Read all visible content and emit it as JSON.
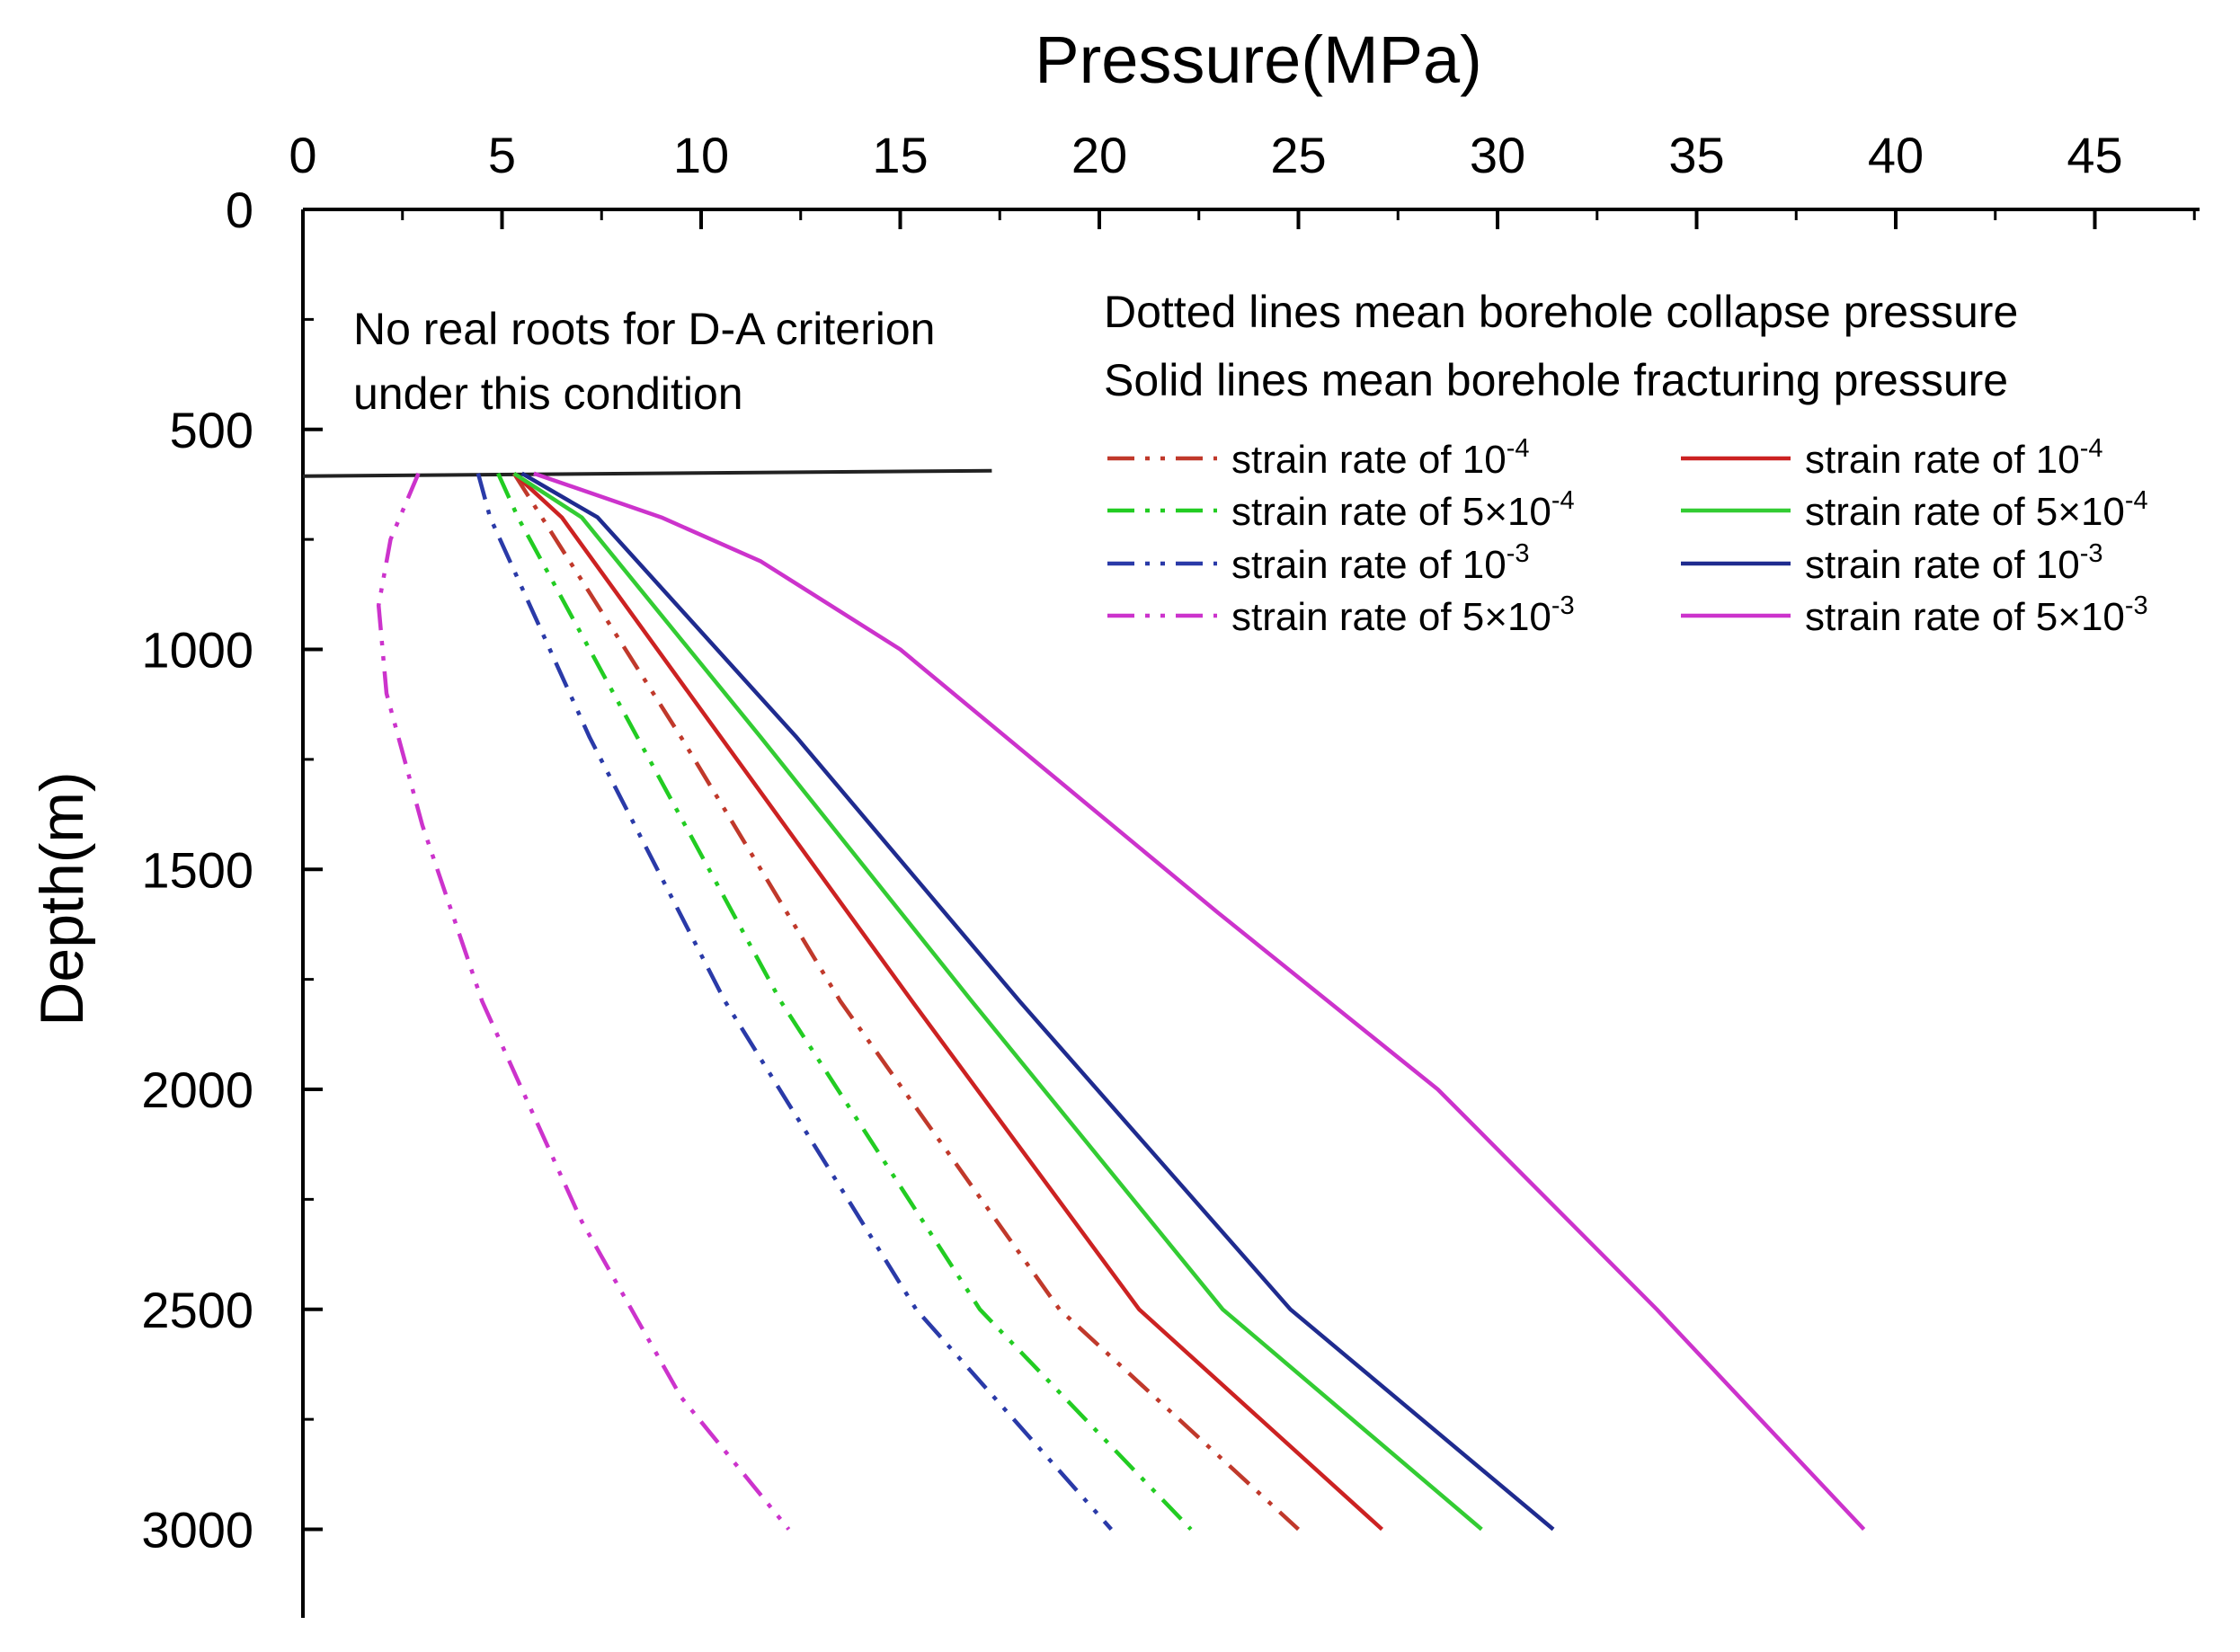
{
  "chart_data": {
    "type": "line",
    "xlabel": "Pressure(MPa)",
    "ylabel": "Depth(m)",
    "xlim": [
      0,
      48
    ],
    "ylim": [
      0,
      3200
    ],
    "y_inverted": true,
    "x_axis_position": "top",
    "x_ticks": [
      "0",
      "5",
      "10",
      "15",
      "20",
      "25",
      "30",
      "35",
      "40",
      "45"
    ],
    "y_ticks": [
      "0",
      "500",
      "1000",
      "1500",
      "2000",
      "2500",
      "3000"
    ],
    "grid": false,
    "annotations": {
      "no_roots": [
        "No real roots for D-A criterion",
        "under this condition"
      ],
      "legend_note": [
        "Dotted lines mean borehole collapse pressure",
        "Solid lines mean borehole fracturing pressure"
      ]
    },
    "threshold_line": {
      "depth": 600,
      "x_range": [
        0,
        17.3
      ]
    },
    "legend_placement": "top-right",
    "series": [
      {
        "name": "strain rate of 10-4",
        "label_base": "strain rate of 10",
        "label_exp": "-4",
        "group": "collapse",
        "style": "dashdot",
        "color": "#c0392b",
        "points": [
          [
            5.3,
            600
          ],
          [
            6.0,
            700
          ],
          [
            9.5,
            1200
          ],
          [
            13.5,
            1800
          ],
          [
            19.0,
            2500
          ],
          [
            25.0,
            3000
          ]
        ]
      },
      {
        "name": "strain rate of 5×10-4",
        "label_base": "strain rate of 5×10",
        "label_exp": "-4",
        "group": "collapse",
        "style": "dashdot",
        "color": "#22cc22",
        "points": [
          [
            4.9,
            600
          ],
          [
            5.4,
            700
          ],
          [
            8.4,
            1200
          ],
          [
            12.0,
            1800
          ],
          [
            17.0,
            2500
          ],
          [
            22.3,
            3000
          ]
        ]
      },
      {
        "name": "strain rate of 10-3",
        "label_base": "strain rate of 10",
        "label_exp": "-3",
        "group": "collapse",
        "style": "dashdot",
        "color": "#2a3aa8",
        "points": [
          [
            4.4,
            600
          ],
          [
            4.7,
            700
          ],
          [
            7.2,
            1200
          ],
          [
            10.6,
            1800
          ],
          [
            15.4,
            2500
          ],
          [
            20.3,
            3000
          ]
        ]
      },
      {
        "name": "strain rate of 5×10-3",
        "label_base": "strain rate of 5×10",
        "label_exp": "-3",
        "group": "collapse",
        "style": "dashdot",
        "color": "#cc33cc",
        "points": [
          [
            2.9,
            600
          ],
          [
            2.2,
            750
          ],
          [
            1.9,
            900
          ],
          [
            2.1,
            1100
          ],
          [
            3.0,
            1400
          ],
          [
            4.5,
            1800
          ],
          [
            7.0,
            2300
          ],
          [
            9.5,
            2700
          ],
          [
            12.2,
            3000
          ]
        ]
      },
      {
        "name": "strain rate of 10-4",
        "label_base": "strain rate of 10",
        "label_exp": "-4",
        "group": "fracturing",
        "style": "solid",
        "color": "#cc2222",
        "points": [
          [
            5.3,
            600
          ],
          [
            6.5,
            700
          ],
          [
            10.5,
            1200
          ],
          [
            15.3,
            1800
          ],
          [
            21.0,
            2500
          ],
          [
            27.1,
            3000
          ]
        ]
      },
      {
        "name": "strain rate of 5×10-4",
        "label_base": "strain rate of 5×10",
        "label_exp": "-4",
        "group": "fracturing",
        "style": "solid",
        "color": "#33cc33",
        "points": [
          [
            5.3,
            600
          ],
          [
            7.0,
            700
          ],
          [
            11.5,
            1200
          ],
          [
            16.8,
            1800
          ],
          [
            23.1,
            2500
          ],
          [
            29.6,
            3000
          ]
        ]
      },
      {
        "name": "strain rate of 10-3",
        "label_base": "strain rate of 10",
        "label_exp": "-3",
        "group": "fracturing",
        "style": "solid",
        "color": "#1f2b8f",
        "points": [
          [
            5.5,
            600
          ],
          [
            7.4,
            700
          ],
          [
            12.4,
            1200
          ],
          [
            18.0,
            1800
          ],
          [
            24.8,
            2500
          ],
          [
            31.4,
            3000
          ]
        ]
      },
      {
        "name": "strain rate of 5×10-3",
        "label_base": "strain rate of 5×10",
        "label_exp": "-3",
        "group": "fracturing",
        "style": "solid",
        "color": "#cc33cc",
        "points": [
          [
            5.8,
            600
          ],
          [
            9.0,
            700
          ],
          [
            11.5,
            800
          ],
          [
            15.0,
            1000
          ],
          [
            19.0,
            1300
          ],
          [
            23.0,
            1600
          ],
          [
            28.5,
            2000
          ],
          [
            34.0,
            2500
          ],
          [
            39.2,
            3000
          ]
        ]
      }
    ]
  }
}
